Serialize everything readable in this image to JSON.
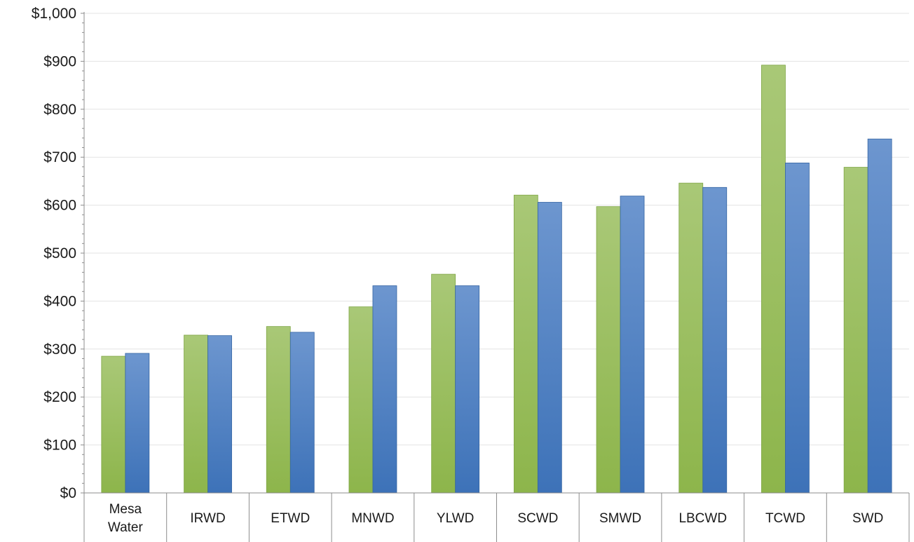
{
  "chart_data": {
    "type": "bar",
    "title": "",
    "xlabel": "",
    "ylabel": "",
    "ylim": [
      0,
      1000
    ],
    "yticks": [
      0,
      100,
      200,
      300,
      400,
      500,
      600,
      700,
      800,
      900,
      1000
    ],
    "ytick_labels": [
      "$0",
      "$100",
      "$200",
      "$300",
      "$400",
      "$500",
      "$600",
      "$700",
      "$800",
      "$900",
      "$1,000"
    ],
    "grid": true,
    "legend": "none",
    "categories": [
      [
        "Mesa",
        "Water"
      ],
      [
        "IRWD"
      ],
      [
        "ETWD"
      ],
      [
        "MNWD"
      ],
      [
        "YLWD"
      ],
      [
        "SCWD"
      ],
      [
        "SMWD"
      ],
      [
        "LBCWD"
      ],
      [
        "TCWD"
      ],
      [
        "SWD"
      ]
    ],
    "series": [
      {
        "color": "#8db54b",
        "color_light": "#a9c877",
        "values": [
          285,
          329,
          347,
          388,
          456,
          621,
          597,
          646,
          892,
          679
        ]
      },
      {
        "color": "#3d72b8",
        "color_light": "#6d96cf",
        "values": [
          291,
          328,
          335,
          432,
          432,
          606,
          619,
          637,
          688,
          738
        ]
      }
    ]
  }
}
